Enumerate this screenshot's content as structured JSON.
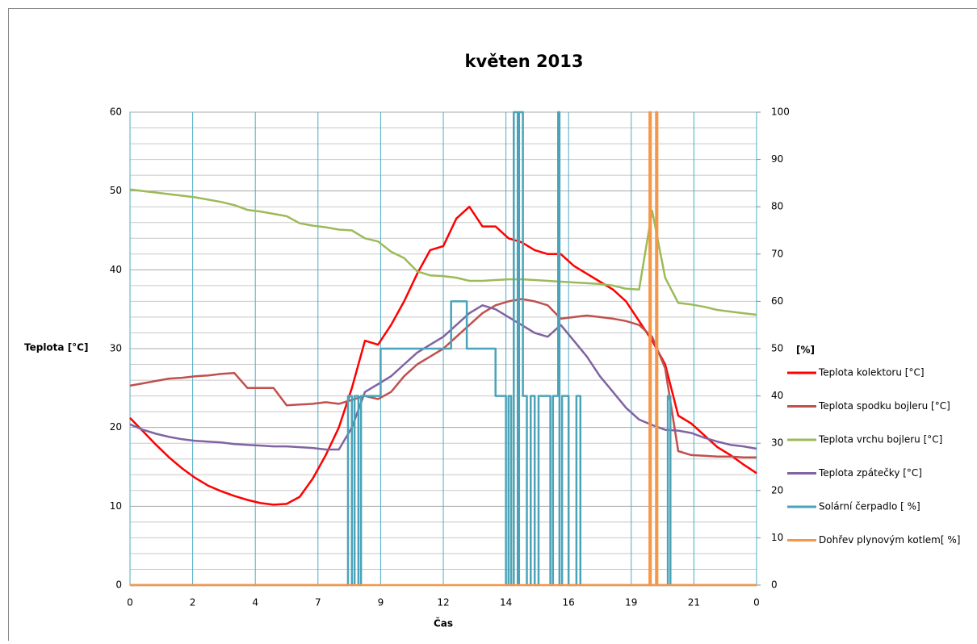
{
  "chart_data": {
    "type": "line",
    "title": "květen 2013",
    "x_label": "Čas",
    "y_label": "Teplota [°C]",
    "y2_label": "[%]",
    "xlim": [
      0,
      24
    ],
    "xticks": [
      0,
      {
        "value": 2.4,
        "label": "2"
      },
      {
        "value": 4.8,
        "label": "4"
      },
      {
        "value": 7.2,
        "label": "7"
      },
      {
        "value": 9.6,
        "label": "9"
      },
      {
        "value": 12,
        "label": "12"
      },
      {
        "value": 14.4,
        "label": "14"
      },
      {
        "value": 16.8,
        "label": "16"
      },
      {
        "value": 19.2,
        "label": "19"
      },
      {
        "value": 21.6,
        "label": "21"
      },
      {
        "value": 24,
        "label": "0"
      }
    ],
    "ylim": [
      0,
      60
    ],
    "yticks": [
      0,
      10,
      20,
      30,
      40,
      50,
      60
    ],
    "yminorticks": [
      2,
      4,
      6,
      8,
      12,
      14,
      16,
      18,
      22,
      24,
      26,
      28,
      32,
      34,
      36,
      38,
      42,
      44,
      46,
      48,
      52,
      54,
      56,
      58
    ],
    "y2lim": [
      0,
      100
    ],
    "y2ticks": [
      0,
      10,
      20,
      30,
      40,
      50,
      60,
      70,
      80,
      90,
      100
    ],
    "grid": true,
    "legend": "right",
    "x": [
      0,
      0.5,
      1,
      1.5,
      2,
      2.5,
      3,
      3.5,
      4,
      4.5,
      5,
      5.5,
      6,
      6.5,
      7,
      7.5,
      8,
      8.5,
      9,
      9.5,
      10,
      10.5,
      11,
      11.5,
      12,
      12.5,
      13,
      13.5,
      14,
      14.5,
      15,
      15.5,
      16,
      16.5,
      17,
      17.5,
      18,
      18.5,
      19,
      19.5,
      20,
      20.5,
      21,
      21.5,
      22,
      22.5,
      23,
      23.5,
      24
    ],
    "series": [
      {
        "name": "Teplota kolektoru [°C]",
        "color": "#ff0000",
        "values": [
          21.2,
          19.5,
          17.8,
          16.2,
          14.8,
          13.6,
          12.6,
          11.9,
          11.3,
          10.8,
          10.4,
          10.2,
          10.3,
          11.2,
          13.5,
          16.5,
          20,
          25,
          31,
          30.5,
          33,
          36,
          39.5,
          42.5,
          43,
          46.5,
          48,
          45.5,
          45.5,
          44,
          43.5,
          42.5,
          42,
          42,
          40.5,
          39.5,
          38.5,
          37.5,
          36,
          33.5,
          31,
          28,
          21.5,
          20.5,
          19,
          17.5,
          16.5,
          15.3,
          14.2
        ]
      },
      {
        "name": "Teplota spodku bojleru [°C]",
        "color": "#c0504d",
        "values": [
          25.3,
          25.6,
          25.9,
          26.2,
          26.3,
          26.5,
          26.6,
          26.8,
          26.9,
          25,
          25,
          25,
          22.8,
          22.9,
          23,
          23.2,
          23,
          23.5,
          24,
          23.6,
          24.5,
          26.5,
          28,
          29,
          30,
          31.5,
          33,
          34.5,
          35.5,
          36,
          36.3,
          36,
          35.5,
          33.8,
          34,
          34.2,
          34,
          33.8,
          33.5,
          33,
          31.5,
          27.5,
          17,
          16.5,
          16.4,
          16.3,
          16.3,
          16.2,
          16.2
        ]
      },
      {
        "name": "Teplota vrchu bojleru [°C]",
        "color": "#9bbb59",
        "values": [
          50.2,
          50,
          49.8,
          49.6,
          49.4,
          49.2,
          48.9,
          48.6,
          48.2,
          47.6,
          47.4,
          47.1,
          46.8,
          45.9,
          45.6,
          45.4,
          45.1,
          45,
          44,
          43.6,
          42.3,
          41.5,
          39.8,
          39.3,
          39.2,
          39,
          38.6,
          38.6,
          38.7,
          38.8,
          38.8,
          38.7,
          38.6,
          38.5,
          38.4,
          38.3,
          38.2,
          38,
          37.6,
          37.5,
          47.5,
          39,
          35.8,
          35.6,
          35.3,
          34.9,
          34.7,
          34.5,
          34.3
        ]
      },
      {
        "name": "Teplota zpátečky [°C]",
        "color": "#8064a2",
        "values": [
          20.4,
          19.7,
          19.2,
          18.8,
          18.5,
          18.3,
          18.2,
          18.1,
          17.9,
          17.8,
          17.7,
          17.6,
          17.6,
          17.5,
          17.4,
          17.2,
          17.2,
          20,
          24.5,
          25.5,
          26.5,
          28,
          29.5,
          30.5,
          31.5,
          33,
          34.5,
          35.5,
          35,
          34,
          33,
          32,
          31.5,
          33,
          31,
          29,
          26.5,
          24.5,
          22.5,
          21,
          20.3,
          19.7,
          19.6,
          19.3,
          18.7,
          18.2,
          17.8,
          17.6,
          17.3
        ]
      },
      {
        "name": "Solární čerpadlo [ %]",
        "color": "#4aa3b8",
        "axis": "y2",
        "x": [
          0,
          8.35,
          8.35,
          8.5,
          8.5,
          8.6,
          8.6,
          8.75,
          8.75,
          8.85,
          8.85,
          9.6,
          9.6,
          12.3,
          12.3,
          12.9,
          12.9,
          14,
          14,
          14.4,
          14.4,
          14.5,
          14.5,
          14.6,
          14.6,
          14.7,
          14.7,
          14.85,
          14.85,
          14.9,
          14.9,
          15.05,
          15.05,
          15.2,
          15.2,
          15.35,
          15.35,
          15.5,
          15.5,
          15.65,
          15.65,
          16.1,
          16.1,
          16.2,
          16.2,
          16.4,
          16.4,
          16.45,
          16.45,
          16.55,
          16.55,
          16.8,
          16.8,
          17.1,
          17.1,
          17.25,
          17.25,
          20.6,
          20.6,
          20.7,
          20.7,
          24
        ],
        "values": [
          0,
          0,
          40,
          40,
          0,
          0,
          40,
          40,
          0,
          0,
          40,
          40,
          50,
          50,
          60,
          60,
          50,
          50,
          40,
          40,
          0,
          0,
          40,
          40,
          0,
          0,
          100,
          100,
          0,
          0,
          100,
          100,
          40,
          40,
          0,
          0,
          40,
          40,
          0,
          0,
          40,
          40,
          0,
          0,
          40,
          40,
          100,
          100,
          0,
          0,
          40,
          40,
          0,
          0,
          40,
          40,
          0,
          0,
          40,
          40,
          0,
          0
        ]
      },
      {
        "name": "Dohřev plynovým kotlem[ %]",
        "color": "#f79646",
        "axis": "y2",
        "x": [
          0,
          19.9,
          19.9,
          19.95,
          19.95,
          20.15,
          20.15,
          20.2,
          20.2,
          24
        ],
        "values": [
          0,
          0,
          100,
          100,
          0,
          0,
          100,
          100,
          0,
          0
        ]
      }
    ]
  }
}
